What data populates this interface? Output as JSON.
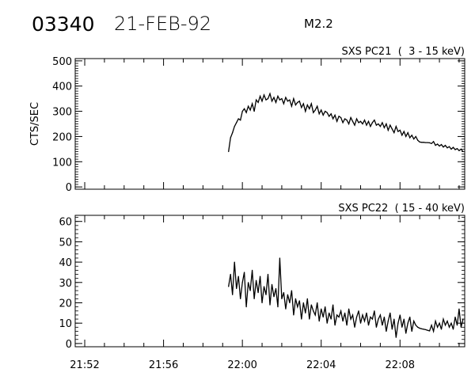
{
  "header": {
    "event_id": "03340",
    "date": "21-FEB-92",
    "flare_class": "M2.2"
  },
  "chart_data": [
    {
      "type": "line",
      "title": "SXS PC21  (  3 - 15 keV)",
      "ylabel": "CTS/SEC",
      "ylim": [
        -9,
        509
      ],
      "yticks": [
        0,
        100,
        200,
        300,
        400,
        500
      ],
      "xlim": [
        "21:51:31",
        "22:11:17"
      ],
      "xticks": [
        "21:52",
        "21:56",
        "22:00",
        "22:04",
        "22:08"
      ],
      "x_start": "21:59:18",
      "x_step_seconds": 6,
      "values": [
        140,
        195,
        215,
        240,
        255,
        270,
        265,
        300,
        310,
        295,
        320,
        305,
        330,
        300,
        345,
        335,
        360,
        340,
        365,
        345,
        350,
        370,
        340,
        355,
        335,
        360,
        345,
        350,
        330,
        355,
        340,
        345,
        320,
        350,
        325,
        335,
        340,
        315,
        330,
        300,
        325,
        310,
        330,
        295,
        305,
        320,
        290,
        305,
        285,
        300,
        295,
        280,
        290,
        270,
        285,
        260,
        280,
        275,
        255,
        270,
        265,
        250,
        275,
        260,
        245,
        270,
        255,
        260,
        250,
        265,
        245,
        260,
        240,
        255,
        265,
        245,
        250,
        240,
        255,
        235,
        250,
        225,
        245,
        230,
        215,
        240,
        220,
        225,
        205,
        220,
        200,
        215,
        195,
        205,
        190,
        200,
        185,
        178,
        177,
        177,
        176,
        176,
        175,
        172,
        180,
        165,
        170,
        162,
        168,
        158,
        165,
        155,
        160,
        150,
        157,
        148,
        152,
        144,
        150,
        140
      ]
    },
    {
      "type": "line",
      "title": "SXS PC22  ( 15 - 40 keV)",
      "ylabel": "",
      "ylim": [
        -1.6,
        63
      ],
      "yticks": [
        0,
        10,
        20,
        30,
        40,
        50,
        60
      ],
      "xlim": [
        "21:51:31",
        "22:11:17"
      ],
      "xticks": [
        "21:52",
        "21:56",
        "22:00",
        "22:04",
        "22:08"
      ],
      "x_start": "21:59:18",
      "x_step_seconds": 6,
      "values": [
        28,
        34,
        24,
        40,
        27,
        33,
        22,
        30,
        35,
        18,
        30,
        26,
        36,
        22,
        31,
        25,
        33,
        20,
        28,
        24,
        34,
        19,
        29,
        23,
        27,
        18,
        42,
        22,
        25,
        17,
        24,
        20,
        26,
        14,
        22,
        18,
        21,
        12,
        20,
        15,
        22,
        12,
        19,
        16,
        14,
        20,
        11,
        17,
        13,
        18,
        10,
        15,
        12,
        19,
        9,
        14,
        13,
        16,
        11,
        15,
        9,
        17,
        12,
        14,
        8,
        13,
        16,
        10,
        14,
        11,
        15,
        9,
        13,
        12,
        16,
        8,
        12,
        14,
        9,
        13,
        6,
        11,
        15,
        7,
        12,
        3,
        10,
        14,
        8,
        12,
        5,
        10,
        13,
        6,
        11,
        9,
        8,
        7.5,
        7.2,
        7,
        6.8,
        6.5,
        6.2,
        9,
        6,
        11,
        8,
        10,
        7,
        12,
        9,
        11,
        8,
        10,
        7,
        13,
        9,
        17,
        8,
        12
      ]
    }
  ]
}
